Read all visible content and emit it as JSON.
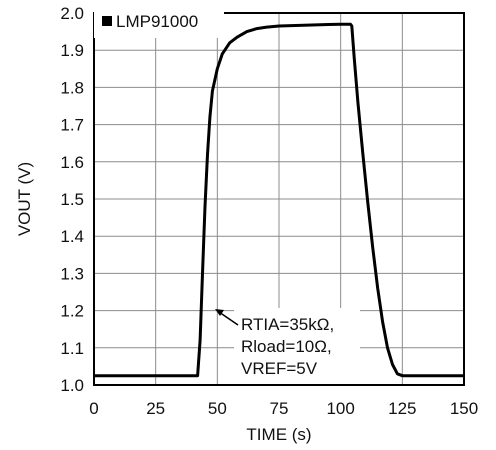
{
  "chart_data": {
    "type": "line",
    "xlabel": "TIME (s)",
    "ylabel": "VOUT (V)",
    "xlim": [
      0,
      150
    ],
    "ylim": [
      1.0,
      2.0
    ],
    "x_ticks": [
      "0",
      "25",
      "50",
      "75",
      "100",
      "125",
      "150"
    ],
    "y_ticks": [
      "1.0",
      "1.1",
      "1.2",
      "1.3",
      "1.4",
      "1.5",
      "1.6",
      "1.7",
      "1.8",
      "1.9",
      "2.0"
    ],
    "grid": true,
    "legend_position": "top-left",
    "annotation": [
      "RTIA=35kΩ,",
      "Rload=10Ω,",
      "VREF=5V"
    ],
    "series": [
      {
        "name": "LMP91000",
        "color": "#000000",
        "points": [
          [
            0,
            1.025
          ],
          [
            10,
            1.025
          ],
          [
            20,
            1.025
          ],
          [
            30,
            1.025
          ],
          [
            40,
            1.025
          ],
          [
            42,
            1.025
          ],
          [
            43,
            1.12
          ],
          [
            44,
            1.3
          ],
          [
            45,
            1.48
          ],
          [
            46,
            1.62
          ],
          [
            47,
            1.72
          ],
          [
            48,
            1.79
          ],
          [
            50,
            1.85
          ],
          [
            52,
            1.89
          ],
          [
            55,
            1.92
          ],
          [
            58,
            1.935
          ],
          [
            62,
            1.95
          ],
          [
            66,
            1.958
          ],
          [
            70,
            1.962
          ],
          [
            75,
            1.965
          ],
          [
            80,
            1.966
          ],
          [
            85,
            1.967
          ],
          [
            90,
            1.968
          ],
          [
            95,
            1.969
          ],
          [
            100,
            1.97
          ],
          [
            104,
            1.97
          ],
          [
            104.5,
            1.965
          ],
          [
            105.5,
            1.88
          ],
          [
            107,
            1.76
          ],
          [
            109,
            1.62
          ],
          [
            111,
            1.49
          ],
          [
            113,
            1.37
          ],
          [
            115,
            1.26
          ],
          [
            117,
            1.17
          ],
          [
            119,
            1.1
          ],
          [
            121,
            1.055
          ],
          [
            123,
            1.03
          ],
          [
            125,
            1.025
          ],
          [
            130,
            1.025
          ],
          [
            140,
            1.025
          ],
          [
            150,
            1.025
          ]
        ]
      }
    ]
  }
}
